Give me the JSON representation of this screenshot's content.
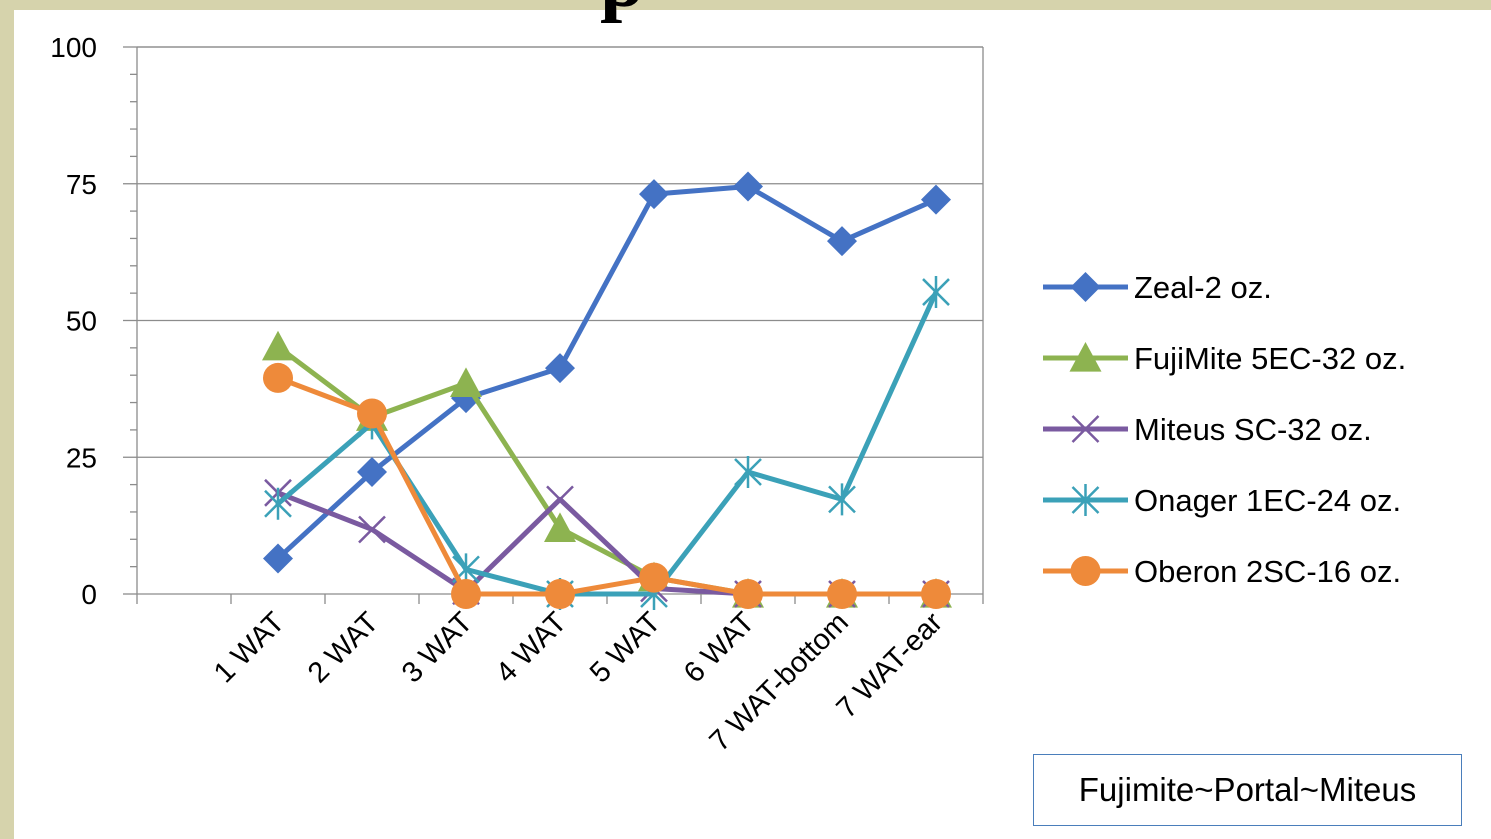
{
  "slide": {
    "title_fragment": "p",
    "note": "Fujimite~Portal~Miteus"
  },
  "chart_data": {
    "type": "line",
    "title": "",
    "xlabel": "",
    "ylabel": "",
    "ylim": [
      0,
      100
    ],
    "y_ticks": [
      0,
      25,
      50,
      75,
      100
    ],
    "grid": true,
    "legend_position": "right",
    "categories": [
      "1 WAT",
      "2 WAT",
      "3 WAT",
      "4 WAT",
      "5 WAT",
      "6 WAT",
      "7 WAT-bottom",
      "7 WAT-ear"
    ],
    "series": [
      {
        "name": "Zeal-2 oz.",
        "color": "#4472c4",
        "marker": "diamond",
        "values": [
          6.5,
          22.3,
          35.8,
          41.3,
          73.1,
          74.5,
          64.5,
          72.1
        ]
      },
      {
        "name": "FujiMite 5EC-32 oz.",
        "color": "#8db350",
        "marker": "triangle",
        "values": [
          45.2,
          32.3,
          38.5,
          12.0,
          3.0,
          0,
          0,
          0
        ]
      },
      {
        "name": "Miteus SC-32 oz.",
        "color": "#7a5aa0",
        "marker": "x",
        "values": [
          18.5,
          11.8,
          0.5,
          17.3,
          1.0,
          0,
          0,
          0
        ]
      },
      {
        "name": "Onager 1EC-24 oz.",
        "color": "#3ba1b8",
        "marker": "star",
        "values": [
          16.5,
          31.2,
          4.5,
          0,
          0,
          22.3,
          17.3,
          55.2
        ]
      },
      {
        "name": "Oberon 2SC-16 oz.",
        "color": "#ee8a3a",
        "marker": "circle",
        "values": [
          39.5,
          33.0,
          0,
          0,
          3.0,
          0,
          0,
          0
        ]
      }
    ]
  }
}
